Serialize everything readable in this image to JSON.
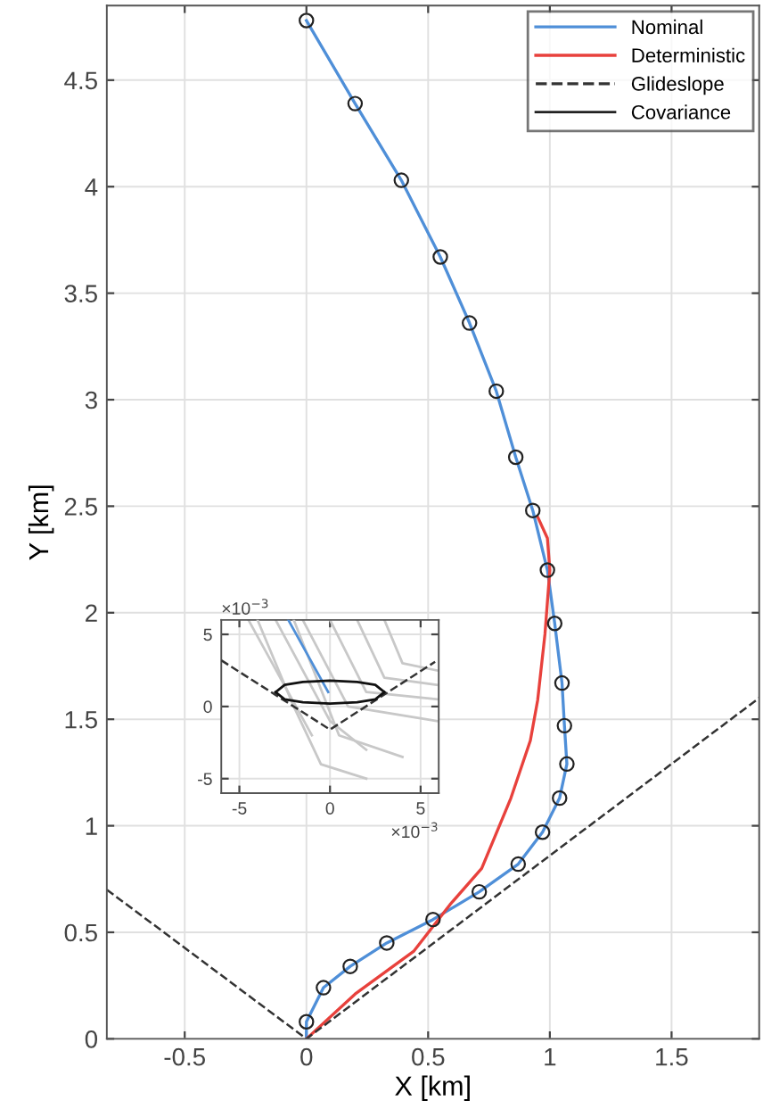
{
  "chart_data": [
    {
      "type": "line",
      "xlabel": "X [km]",
      "ylabel": "Y [km]",
      "xlim": [
        -0.82,
        1.86
      ],
      "ylim": [
        0,
        4.85
      ],
      "xticks": [
        -0.5,
        0,
        0.5,
        1,
        1.5
      ],
      "yticks": [
        0,
        0.5,
        1,
        1.5,
        2,
        2.5,
        3,
        3.5,
        4,
        4.5
      ],
      "grid": true,
      "legend": "top right",
      "series": [
        {
          "name": "Nominal",
          "color": "#4f8fd8",
          "x": [
            0,
            0.0,
            0.07,
            0.18,
            0.33,
            0.52,
            0.71,
            0.87,
            0.97,
            1.04,
            1.07,
            1.06,
            1.05,
            1.02,
            0.99,
            0.93,
            0.86,
            0.78,
            0.67,
            0.55,
            0.39,
            0.2,
            0
          ],
          "values": [
            0,
            0.08,
            0.24,
            0.34,
            0.45,
            0.56,
            0.69,
            0.82,
            0.97,
            1.13,
            1.29,
            1.47,
            1.67,
            1.95,
            2.2,
            2.48,
            2.73,
            3.04,
            3.36,
            3.67,
            4.03,
            4.39,
            4.78
          ]
        },
        {
          "name": "Deterministic",
          "color": "#e8413c",
          "x": [
            0,
            0.2,
            0.44,
            0.59,
            0.72,
            0.84,
            0.92,
            0.95,
            0.98,
            1.0,
            0.99,
            0.95
          ],
          "values": [
            0,
            0.21,
            0.41,
            0.63,
            0.8,
            1.13,
            1.4,
            1.59,
            1.9,
            2.2,
            2.35,
            2.45
          ]
        },
        {
          "name": "Glideslope",
          "color": "#333333",
          "line_style": "dashed",
          "x": [
            -0.82,
            0,
            1.86
          ],
          "values": [
            0.7,
            0,
            1.6
          ]
        },
        {
          "name": "Covariance",
          "type": "scatter",
          "color": "#222222",
          "marker": "circle",
          "x": [
            0.0,
            0.07,
            0.18,
            0.33,
            0.52,
            0.71,
            0.87,
            0.97,
            1.04,
            1.07,
            1.06,
            1.05,
            1.02,
            0.99,
            0.93,
            0.86,
            0.78,
            0.67,
            0.55,
            0.39,
            0.2,
            0
          ],
          "values": [
            0.08,
            0.24,
            0.34,
            0.45,
            0.56,
            0.69,
            0.82,
            0.97,
            1.13,
            1.29,
            1.47,
            1.67,
            1.95,
            2.2,
            2.48,
            2.73,
            3.04,
            3.36,
            3.67,
            4.03,
            4.39,
            4.78
          ]
        }
      ]
    },
    {
      "type": "line",
      "xlim": [
        -6,
        6
      ],
      "ylim": [
        -6,
        6
      ],
      "xticks": [
        -5,
        0,
        5
      ],
      "yticks": [
        -5,
        0,
        5
      ],
      "grid": true,
      "annotations": [
        "×10$^{−3}$",
        "×10$^{−3}$"
      ],
      "series": [
        {
          "color": "#c8c8c8",
          "x": [
            -4.5,
            -1
          ],
          "values": [
            6,
            -2
          ]
        },
        {
          "color": "#c8c8c8",
          "x": [
            -3,
            0,
            2
          ],
          "values": [
            6,
            -1,
            -3
          ]
        },
        {
          "color": "#c8c8c8",
          "x": [
            -1.5,
            1,
            5.9
          ],
          "values": [
            6,
            0,
            -1
          ]
        },
        {
          "color": "#c8c8c8",
          "x": [
            0,
            2,
            5.9
          ],
          "values": [
            6,
            1,
            0.5
          ]
        },
        {
          "color": "#c8c8c8",
          "x": [
            1.5,
            3,
            5.9
          ],
          "values": [
            6,
            2,
            1.5
          ]
        },
        {
          "color": "#c8c8c8",
          "x": [
            3,
            4,
            5.9
          ],
          "values": [
            6,
            3,
            2.5
          ]
        },
        {
          "color": "#c8c8c8",
          "x": [
            -4,
            -2,
            -0.5,
            2
          ],
          "values": [
            6,
            0,
            -4,
            -5
          ]
        },
        {
          "color": "#c8c8c8",
          "x": [
            -2,
            0.5,
            4
          ],
          "values": [
            6,
            -2,
            -3.5
          ]
        },
        {
          "color": "#4f8fd8",
          "x": [
            -2.3,
            -0.1
          ],
          "values": [
            6,
            1
          ]
        },
        {
          "color": "#333333",
          "line_style": "dashed",
          "x": [
            -6,
            0,
            5.8
          ],
          "values": [
            3.2,
            -1.6,
            3.1
          ]
        },
        {
          "color": "#111111",
          "x": [
            -3,
            -2.5,
            -1.5,
            0,
            1.5,
            2.5,
            3
          ],
          "values": [
            1,
            1.5,
            1.7,
            1.8,
            1.7,
            1.5,
            1
          ]
        },
        {
          "color": "#111111",
          "x": [
            -3,
            -2.5,
            -1.5,
            0,
            1.5,
            2.5,
            3
          ],
          "values": [
            1,
            0.5,
            0.3,
            0.2,
            0.3,
            0.5,
            1
          ]
        }
      ]
    }
  ]
}
